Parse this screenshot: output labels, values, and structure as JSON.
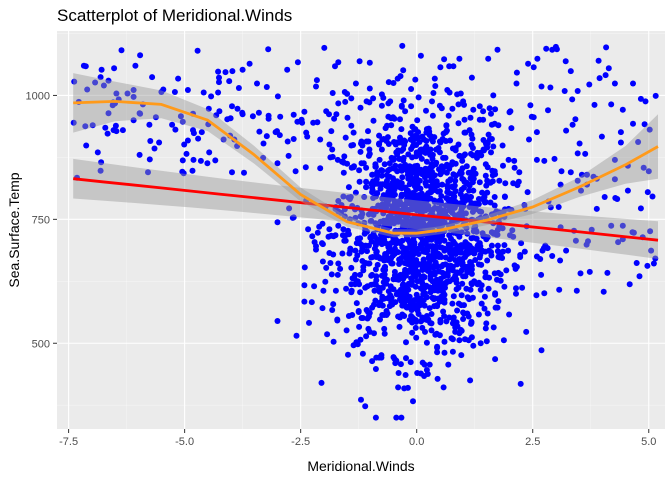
{
  "chart_data": {
    "type": "scatter",
    "title": "Scatterplot of Meridional.Winds",
    "xlabel": "Meridional.Winds",
    "ylabel": "Sea.Surface.Temp",
    "xlim": [
      -7.75,
      5.35
    ],
    "ylim": [
      327,
      1130
    ],
    "x_ticks": [
      -7.5,
      -5.0,
      -2.5,
      0.0,
      2.5,
      5.0
    ],
    "x_tick_labels": [
      "-7.5",
      "-5.0",
      "-2.5",
      "0.0",
      "2.5",
      "5.0"
    ],
    "y_ticks": [
      500,
      750,
      1000
    ],
    "y_tick_labels": [
      "500",
      "750",
      "1000"
    ],
    "grid": true,
    "legend": "none",
    "point_color": "#0000ff",
    "points": [],
    "linear_fit": {
      "color": "#ff0000",
      "x": [
        -7.4,
        5.2
      ],
      "y": [
        832,
        708
      ],
      "ci_halfwidth": [
        30,
        28
      ]
    },
    "smooth_fit": {
      "color": "#ff9a1a",
      "x": [
        -7.4,
        -6.5,
        -5.5,
        -4.5,
        -3.5,
        -2.5,
        -1.5,
        -0.5,
        0.0,
        0.5,
        1.5,
        2.5,
        3.5,
        4.5,
        5.2
      ],
      "y": [
        985,
        988,
        982,
        950,
        880,
        800,
        745,
        722,
        722,
        728,
        748,
        775,
        815,
        860,
        897
      ],
      "ci_halfwidth": [
        60,
        40,
        28,
        22,
        18,
        14,
        10,
        8,
        8,
        8,
        10,
        14,
        20,
        38,
        65
      ]
    }
  },
  "colors": {
    "panel_background": "#ebebeb",
    "grid_major": "#ffffff",
    "ci_band": "#999999"
  }
}
